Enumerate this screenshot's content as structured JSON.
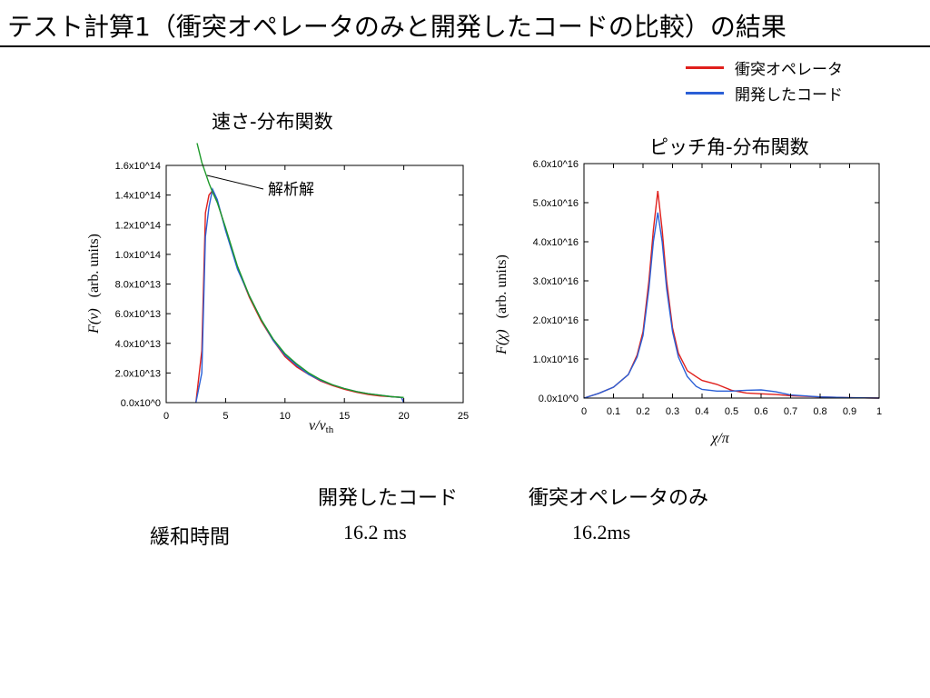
{
  "slide": {
    "title": "テスト計算1（衝突オペレータのみと開発したコードの比較）の結果"
  },
  "legend": {
    "items": [
      {
        "label": "衝突オペレータ",
        "color": "#e0201c"
      },
      {
        "label": "開発したコード",
        "color": "#2a5fd6"
      }
    ]
  },
  "chart_data": [
    {
      "type": "line",
      "title": "速さ-分布関数",
      "xlabel_var": "v",
      "xlabel_den": "v",
      "xlabel_sub": "th",
      "ylabel_fn": "F(v)",
      "ylabel_unit": "(arb. units)",
      "annotation": "解析解",
      "xlim": [
        0,
        25
      ],
      "ylim": [
        0,
        160000000000000.0
      ],
      "x_ticks": [
        "0",
        "5",
        "10",
        "15",
        "20",
        "25"
      ],
      "y_ticks": [
        "0.0x10^0",
        "2.0x10^13",
        "4.0x10^13",
        "6.0x10^13",
        "8.0x10^13",
        "1.0x10^14",
        "1.2x10^14",
        "1.4x10^14",
        "1.6x10^14"
      ],
      "series": [
        {
          "color": "#e0201c",
          "x": [
            2.5,
            3.0,
            3.3,
            3.6,
            3.9,
            4.3,
            5.0,
            6.0,
            7.0,
            8.0,
            9.0,
            10.0,
            11.0,
            12.0,
            13.0,
            14.0,
            15.0,
            16.0,
            17.0,
            18.0,
            19.0,
            19.8,
            20.0
          ],
          "y": [
            0,
            35000000000000.0,
            128000000000000.0,
            140000000000000.0,
            143000000000000.0,
            136000000000000.0,
            117000000000000.0,
            91000000000000.0,
            71000000000000.0,
            55000000000000.0,
            42000000000000.0,
            31000000000000.0,
            24000000000000.0,
            19000000000000.0,
            14500000000000.0,
            11500000000000.0,
            9000000000000.0,
            7000000000000.0,
            5500000000000.0,
            4500000000000.0,
            4000000000000.0,
            3500000000000.0,
            0
          ]
        },
        {
          "color": "#2a5fd6",
          "x": [
            2.5,
            3.0,
            3.3,
            3.6,
            3.9,
            4.3,
            5.0,
            6.0,
            7.0,
            8.0,
            9.0,
            10.0,
            11.0,
            12.0,
            13.0,
            14.0,
            15.0,
            16.0,
            17.0,
            18.0,
            19.0,
            19.8,
            20.0
          ],
          "y": [
            0,
            20000000000000.0,
            112000000000000.0,
            132000000000000.0,
            144000000000000.0,
            137000000000000.0,
            116000000000000.0,
            90000000000000.0,
            72000000000000.0,
            56000000000000.0,
            42000000000000.0,
            32000000000000.0,
            25000000000000.0,
            19000000000000.0,
            15000000000000.0,
            12000000000000.0,
            9500000000000.0,
            7500000000000.0,
            6000000000000.0,
            5000000000000.0,
            4000000000000.0,
            3500000000000.0,
            0
          ]
        },
        {
          "color": "#1e9a2a",
          "x": [
            2.6,
            3.0,
            3.3,
            3.6,
            3.9,
            4.3,
            5.0,
            6.0,
            7.0,
            8.0,
            9.0,
            10.0,
            11.0,
            12.0,
            13.0,
            14.0,
            15.0,
            16.0,
            17.0,
            18.0,
            19.0,
            20.0
          ],
          "y": [
            175000000000000.0,
            162000000000000.0,
            155000000000000.0,
            148000000000000.0,
            142000000000000.0,
            135000000000000.0,
            118000000000000.0,
            92000000000000.0,
            72000000000000.0,
            56000000000000.0,
            43000000000000.0,
            33000000000000.0,
            26000000000000.0,
            20000000000000.0,
            15500000000000.0,
            12000000000000.0,
            9500000000000.0,
            7500000000000.0,
            6000000000000.0,
            5000000000000.0,
            4000000000000.0,
            3500000000000.0
          ]
        }
      ]
    },
    {
      "type": "line",
      "title": "ピッチ角-分布関数",
      "xlabel": "χ/π",
      "ylabel_fn": "F(χ)",
      "ylabel_unit": "(arb. units)",
      "xlim": [
        0,
        1
      ],
      "ylim": [
        0,
        6e+16
      ],
      "x_ticks": [
        "0",
        "0.1",
        "0.2",
        "0.3",
        "0.4",
        "0.5",
        "0.6",
        "0.7",
        "0.8",
        "0.9",
        "1"
      ],
      "y_ticks": [
        "0.0x10^0",
        "1.0x10^16",
        "2.0x10^16",
        "3.0x10^16",
        "4.0x10^16",
        "5.0x10^16",
        "6.0x10^16"
      ],
      "series": [
        {
          "color": "#e0201c",
          "x": [
            0,
            0.05,
            0.1,
            0.15,
            0.18,
            0.2,
            0.22,
            0.235,
            0.25,
            0.265,
            0.28,
            0.3,
            0.32,
            0.35,
            0.38,
            0.4,
            0.45,
            0.5,
            0.55,
            0.6,
            0.65,
            0.7,
            0.8,
            0.9,
            1.0
          ],
          "y": [
            0,
            1200000000000000.0,
            2800000000000000.0,
            6000000000000000.0,
            1.1e+16,
            1.7e+16,
            3e+16,
            4.3e+16,
            5.3e+16,
            4.3e+16,
            3e+16,
            1.8e+16,
            1.15e+16,
            7000000000000000.0,
            5500000000000000.0,
            4500000000000000.0,
            3500000000000000.0,
            2000000000000000.0,
            1300000000000000.0,
            1100000000000000.0,
            900000000000000.0,
            600000000000000.0,
            300000000000000.0,
            100000000000000.0,
            0
          ]
        },
        {
          "color": "#2a5fd6",
          "x": [
            0,
            0.05,
            0.1,
            0.15,
            0.18,
            0.2,
            0.22,
            0.235,
            0.25,
            0.265,
            0.28,
            0.3,
            0.32,
            0.35,
            0.38,
            0.4,
            0.45,
            0.5,
            0.55,
            0.6,
            0.65,
            0.7,
            0.8,
            0.9,
            1.0
          ],
          "y": [
            0,
            1200000000000000.0,
            2800000000000000.0,
            6000000000000000.0,
            1.05e+16,
            1.6e+16,
            2.8e+16,
            4e+16,
            4.75e+16,
            4e+16,
            2.8e+16,
            1.7e+16,
            1.05e+16,
            5500000000000000.0,
            3000000000000000.0,
            2200000000000000.0,
            1800000000000000.0,
            1800000000000000.0,
            2000000000000000.0,
            2100000000000000.0,
            1600000000000000.0,
            800000000000000.0,
            300000000000000.0,
            100000000000000.0,
            0
          ]
        }
      ]
    }
  ],
  "table": {
    "col_headers": [
      "開発したコード",
      "衝突オペレータのみ"
    ],
    "row_label": "緩和時間",
    "values": [
      "16.2 ms",
      "16.2ms"
    ]
  }
}
